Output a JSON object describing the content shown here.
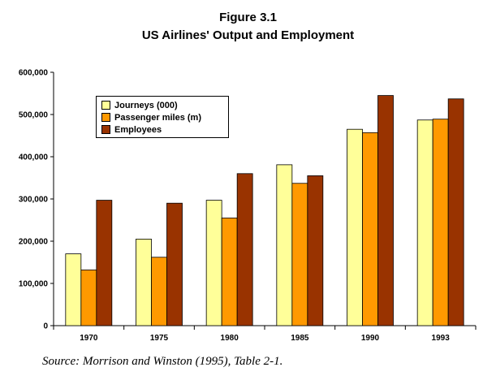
{
  "figure": {
    "title": "Figure 3.1",
    "subtitle": "US Airlines' Output and Employment",
    "source_note": "Source:  Morrison and Winston (1995), Table 2-1."
  },
  "chart_data": {
    "type": "bar",
    "title": "US Airlines' Output and Employment",
    "xlabel": "",
    "ylabel": "",
    "categories": [
      "1970",
      "1975",
      "1980",
      "1985",
      "1990",
      "1993"
    ],
    "ylim": [
      0,
      600000
    ],
    "y_ticks": [
      0,
      100000,
      200000,
      300000,
      400000,
      500000,
      600000
    ],
    "y_tick_labels": [
      "0",
      "100,000",
      "200,000",
      "300,000",
      "400,000",
      "500,000",
      "600,000"
    ],
    "grid": false,
    "legend_position": "top-left",
    "series": [
      {
        "name": "Journeys (000)",
        "color": "#ffff99",
        "values": [
          170000,
          205000,
          297000,
          381000,
          465000,
          487000
        ]
      },
      {
        "name": "Passenger miles (m)",
        "color": "#ff9900",
        "values": [
          132000,
          162000,
          255000,
          337000,
          457000,
          489000
        ]
      },
      {
        "name": "Employees",
        "color": "#993300",
        "values": [
          297000,
          290000,
          360000,
          355000,
          545000,
          537000
        ]
      }
    ]
  }
}
